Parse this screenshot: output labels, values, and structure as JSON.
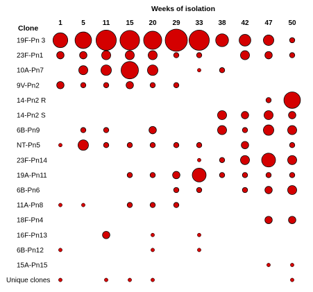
{
  "chart_data": {
    "type": "bubble",
    "title": "Weeks of isolation",
    "row_header": "Clone",
    "weeks": [
      "1",
      "5",
      "11",
      "15",
      "20",
      "29",
      "33",
      "38",
      "42",
      "47",
      "50"
    ],
    "clones": [
      "19F-Pn 3",
      "23F-Pn1",
      "10A-Pn7",
      "9V-Pn2",
      "14-Pn2 R",
      "14-Pn2 S",
      "6B-Pn9",
      "NT-Pn5",
      "23F-Pn14",
      "19A-Pn11",
      "6B-Pn6",
      "11A-Pn8",
      "18F-Pn4",
      "16F-Pn13",
      "6B-Pn12",
      "15A-Pn15",
      "Unique clones"
    ],
    "values": [
      [
        8,
        10,
        15,
        14,
        12,
        18,
        15,
        6,
        5,
        4,
        1
      ],
      [
        2,
        2,
        3,
        3,
        3,
        1,
        1,
        0,
        3,
        2,
        1
      ],
      [
        0,
        3,
        4,
        11,
        4,
        0,
        0.5,
        1,
        0,
        0,
        0
      ],
      [
        2,
        1,
        1,
        2,
        1,
        1,
        0,
        0,
        0,
        0,
        0
      ],
      [
        0,
        0,
        0,
        0,
        0,
        0,
        0,
        0,
        0,
        1,
        10
      ],
      [
        0,
        0,
        0,
        0,
        0,
        0,
        0,
        3,
        2,
        3,
        2
      ],
      [
        0,
        1,
        1,
        0,
        2,
        0,
        0,
        3,
        1,
        4,
        3
      ],
      [
        0.5,
        4,
        1,
        1,
        1,
        1,
        1,
        0,
        2,
        0,
        1
      ],
      [
        0,
        0,
        0,
        0,
        0,
        0,
        0.5,
        1,
        3,
        7,
        3
      ],
      [
        0,
        0,
        0,
        1,
        1,
        2,
        7,
        1,
        1,
        1,
        1
      ],
      [
        0,
        0,
        0,
        0,
        0,
        1,
        1,
        0,
        1,
        2,
        3
      ],
      [
        0.5,
        0.5,
        0,
        1,
        1,
        1,
        0,
        0,
        0,
        0,
        0
      ],
      [
        0,
        0,
        0,
        0,
        0,
        0,
        0,
        0,
        0,
        2,
        2
      ],
      [
        0,
        0,
        2,
        0,
        0.5,
        0,
        0.5,
        0,
        0,
        0,
        0
      ],
      [
        0.5,
        0,
        0,
        0,
        0.5,
        0,
        0.5,
        0,
        0,
        0,
        0
      ],
      [
        0,
        0,
        0,
        0,
        0,
        0,
        0,
        0,
        0,
        0.5,
        0.5
      ],
      [
        0.5,
        0,
        0.5,
        0.5,
        0.5,
        0,
        0,
        0,
        0,
        0,
        0.5
      ]
    ],
    "legend": "none",
    "grid": false,
    "colors": {
      "bubble_fill": "#d40000",
      "bubble_stroke": "#000000"
    }
  }
}
